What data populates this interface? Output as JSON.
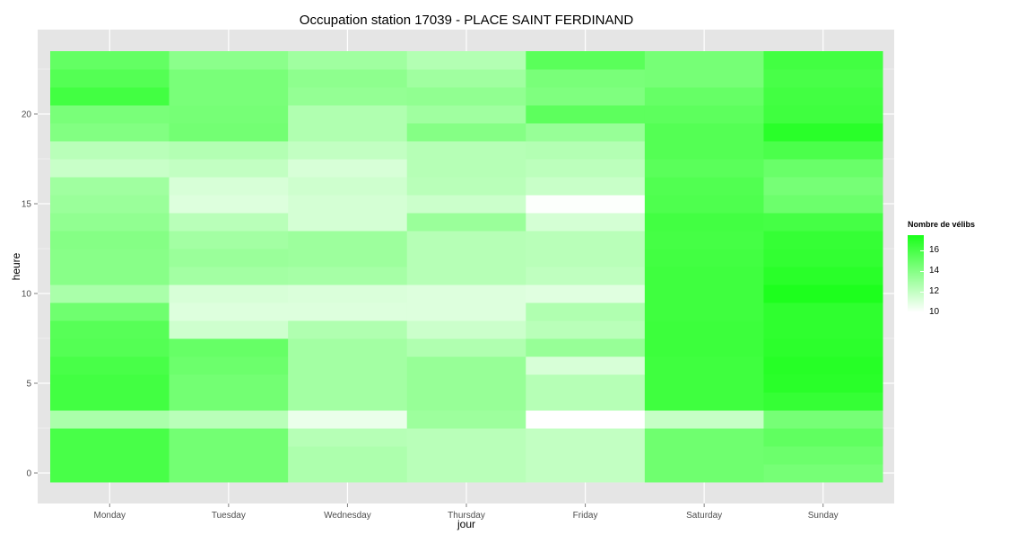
{
  "chart_data": {
    "type": "heatmap",
    "title": "Occupation station 17039 - PLACE SAINT FERDINAND",
    "xlabel": "jour",
    "ylabel": "heure",
    "categories": [
      "Monday",
      "Tuesday",
      "Wednesday",
      "Thursday",
      "Friday",
      "Saturday",
      "Sunday"
    ],
    "hours": [
      0,
      1,
      2,
      3,
      4,
      5,
      6,
      7,
      8,
      9,
      10,
      11,
      12,
      13,
      14,
      15,
      16,
      17,
      18,
      19,
      20,
      21,
      22,
      23
    ],
    "yticks": [
      0,
      5,
      10,
      15,
      20
    ],
    "ylim": [
      -0.5,
      23.5
    ],
    "values": [
      [
        16.0,
        14.6,
        12.7,
        12.3,
        12.0,
        14.7,
        14.5
      ],
      [
        16.0,
        14.6,
        12.7,
        12.3,
        12.0,
        14.7,
        14.8
      ],
      [
        16.0,
        14.6,
        12.4,
        12.3,
        12.0,
        14.7,
        15.2
      ],
      [
        12.8,
        12.3,
        10.7,
        13.2,
        10.0,
        11.9,
        14.5
      ],
      [
        16.2,
        14.6,
        13.0,
        13.4,
        12.4,
        16.3,
        16.6
      ],
      [
        16.2,
        14.6,
        13.0,
        13.4,
        12.4,
        16.3,
        17.0
      ],
      [
        16.0,
        14.8,
        13.0,
        13.4,
        11.3,
        16.3,
        17.1
      ],
      [
        15.6,
        15.0,
        13.0,
        12.6,
        13.4,
        16.4,
        16.9
      ],
      [
        15.5,
        11.6,
        12.6,
        11.7,
        12.3,
        16.4,
        16.8
      ],
      [
        14.7,
        11.1,
        11.1,
        11.1,
        12.6,
        16.3,
        16.8
      ],
      [
        12.8,
        11.3,
        11.2,
        11.1,
        11.0,
        16.3,
        17.4
      ],
      [
        13.9,
        13.0,
        12.9,
        12.4,
        12.1,
        16.3,
        17.0
      ],
      [
        13.9,
        13.3,
        13.2,
        12.4,
        12.3,
        16.2,
        16.7
      ],
      [
        14.0,
        13.0,
        13.2,
        12.4,
        12.3,
        16.1,
        16.6
      ],
      [
        13.6,
        12.3,
        11.4,
        13.3,
        11.4,
        16.2,
        16.1
      ],
      [
        13.3,
        11.1,
        11.4,
        11.7,
        10.1,
        15.8,
        14.8
      ],
      [
        13.1,
        11.3,
        11.6,
        12.3,
        11.8,
        15.7,
        14.5
      ],
      [
        11.8,
        12.0,
        11.3,
        12.4,
        12.2,
        15.4,
        14.9
      ],
      [
        12.3,
        12.5,
        12.0,
        12.4,
        12.5,
        15.6,
        15.9
      ],
      [
        14.1,
        14.6,
        12.6,
        14.0,
        13.4,
        15.6,
        17.0
      ],
      [
        14.4,
        14.5,
        12.6,
        13.1,
        15.3,
        15.3,
        16.3
      ],
      [
        16.2,
        14.4,
        13.5,
        13.6,
        14.2,
        15.0,
        16.2
      ],
      [
        15.6,
        14.4,
        13.7,
        13.1,
        14.4,
        14.5,
        16.0
      ],
      [
        15.1,
        13.8,
        13.1,
        12.5,
        15.4,
        14.5,
        16.2
      ]
    ],
    "color_range": [
      10,
      17.5
    ],
    "color_low": "#ffffff",
    "color_high": "#1aff1a",
    "panel_background": "#e5e5e5",
    "grid": true,
    "legend": {
      "title": "Nombre de vélibs",
      "position": "right",
      "breaks": [
        16,
        14,
        12,
        10
      ]
    }
  }
}
